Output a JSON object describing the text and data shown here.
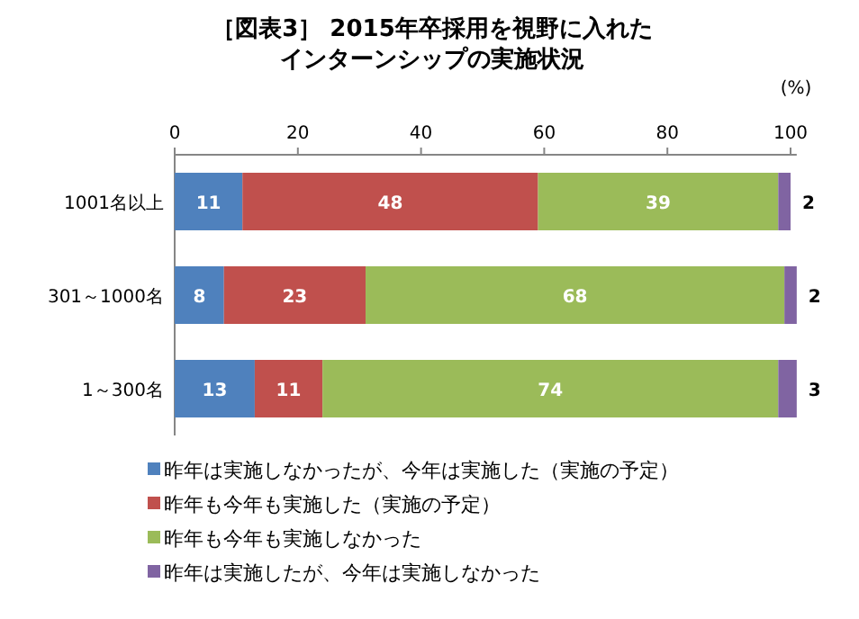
{
  "chart_data": {
    "type": "bar",
    "orientation": "horizontal",
    "stacked": true,
    "title": "［図表3］ 2015年卒採用を視野に入れた",
    "subtitle": "インターンシップの実施状況",
    "xlabel": "(%)",
    "categories": [
      "1001名以上",
      "301～1000名",
      "1～300名"
    ],
    "series": [
      {
        "name": "昨年は実施しなかったが、今年は実施した（実施の予定）",
        "color": "#4f81bd",
        "values": [
          11,
          8,
          13
        ]
      },
      {
        "name": "昨年も今年も実施した（実施の予定）",
        "color": "#c0504d",
        "values": [
          48,
          23,
          11
        ]
      },
      {
        "name": "昨年も今年も実施しなかった",
        "color": "#9bbb59",
        "values": [
          39,
          68,
          74
        ]
      },
      {
        "name": "昨年は実施したが、今年は実施しなかった",
        "color": "#8064a2",
        "values": [
          2,
          2,
          3
        ]
      }
    ],
    "xlim": [
      0,
      101
    ],
    "xticks": [
      0,
      20,
      40,
      60,
      80,
      100
    ],
    "data_labels": true,
    "legend": "bottom",
    "grid": false
  }
}
